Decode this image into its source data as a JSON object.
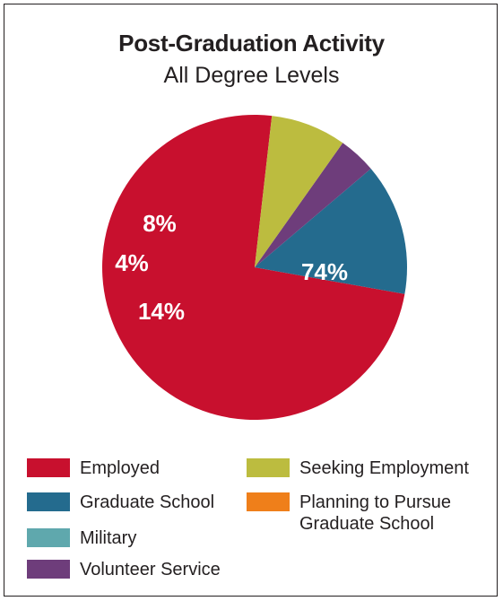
{
  "chart_data": {
    "type": "pie",
    "title": "Post-Graduation Activity",
    "subtitle": "All Degree Levels",
    "slices": [
      {
        "name": "Employed",
        "value": 74,
        "label": "74%",
        "color": "#c8102e"
      },
      {
        "name": "Graduate School",
        "value": 14,
        "label": "14%",
        "color": "#246b8e"
      },
      {
        "name": "Military",
        "value": 0,
        "label": "",
        "color": "#5fa8ad"
      },
      {
        "name": "Volunteer Service",
        "value": 4,
        "label": "4%",
        "color": "#6e3d7b"
      },
      {
        "name": "Seeking Employment",
        "value": 8,
        "label": "8%",
        "color": "#bcbc3f"
      },
      {
        "name": "Planning to Pursue Graduate School",
        "value": 0,
        "label": "",
        "color": "#ef7f1a"
      }
    ],
    "legend": [
      {
        "label": "Employed",
        "color": "#c8102e"
      },
      {
        "label": "Graduate School",
        "color": "#246b8e"
      },
      {
        "label": "Military",
        "color": "#5fa8ad"
      },
      {
        "label": "Volunteer Service",
        "color": "#6e3d7b"
      },
      {
        "label": "Seeking Employment",
        "color": "#bcbc3f"
      },
      {
        "label": "Planning to Pursue\nGraduate School",
        "color": "#ef7f1a"
      }
    ],
    "legend_placement": "bottom"
  }
}
